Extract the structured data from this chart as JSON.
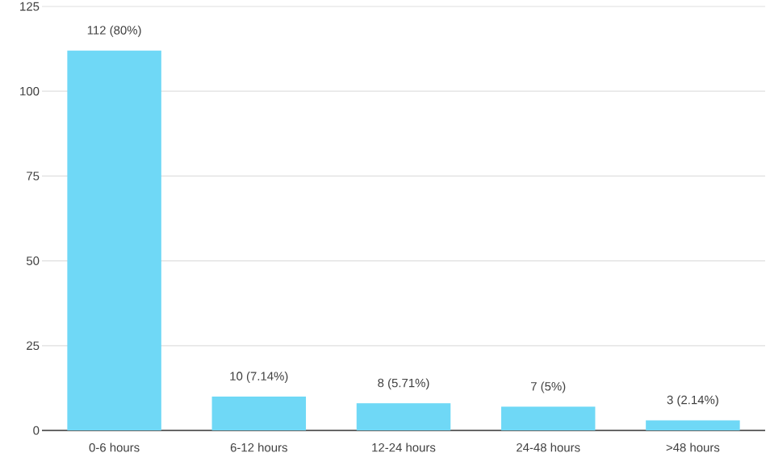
{
  "chart_data": {
    "type": "bar",
    "categories": [
      "0-6 hours",
      "6-12 hours",
      "12-24 hours",
      "24-48 hours",
      ">48 hours"
    ],
    "values": [
      112,
      10,
      8,
      7,
      3
    ],
    "value_labels": [
      "112 (80%)",
      "10 (7.14%)",
      "8 (5.71%)",
      "7 (5%)",
      "3 (2.14%)"
    ],
    "color": "#6fd8f6",
    "ylim": [
      0,
      125
    ],
    "yticks": [
      0,
      25,
      50,
      75,
      100,
      125
    ],
    "grid": "y"
  }
}
